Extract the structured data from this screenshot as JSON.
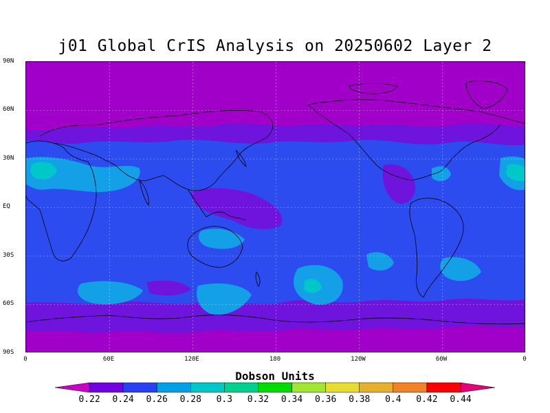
{
  "title": "j01 Global CrIS Analysis on 20250602 Layer 2",
  "y_axis_labels": [
    "90N",
    "60N",
    "30N",
    "EQ",
    "30S",
    "60S",
    "90S"
  ],
  "x_axis_labels": [
    "0",
    "60E",
    "120E",
    "180",
    "120W",
    "60W",
    "0"
  ],
  "colorbar": {
    "title": "Dobson Units",
    "labels": [
      "0.22",
      "0.24",
      "0.26",
      "0.28",
      "0.3",
      "0.32",
      "0.34",
      "0.36",
      "0.38",
      "0.4",
      "0.42",
      "0.44"
    ],
    "colors": [
      "#c800c8",
      "#7000e0",
      "#2840f0",
      "#00a0e8",
      "#00c8c8",
      "#00d090",
      "#00dc00",
      "#a0e632",
      "#e6dc32",
      "#e6af2d",
      "#f08228",
      "#fa0000",
      "#e6007a"
    ]
  },
  "map_colors": {
    "magenta": "#a000c8",
    "purple": "#6e14dc",
    "blue": "#2c4cf0",
    "lightblue": "#14a0e6",
    "cyan": "#00c8c8",
    "deep_magenta": "#c800c8"
  }
}
